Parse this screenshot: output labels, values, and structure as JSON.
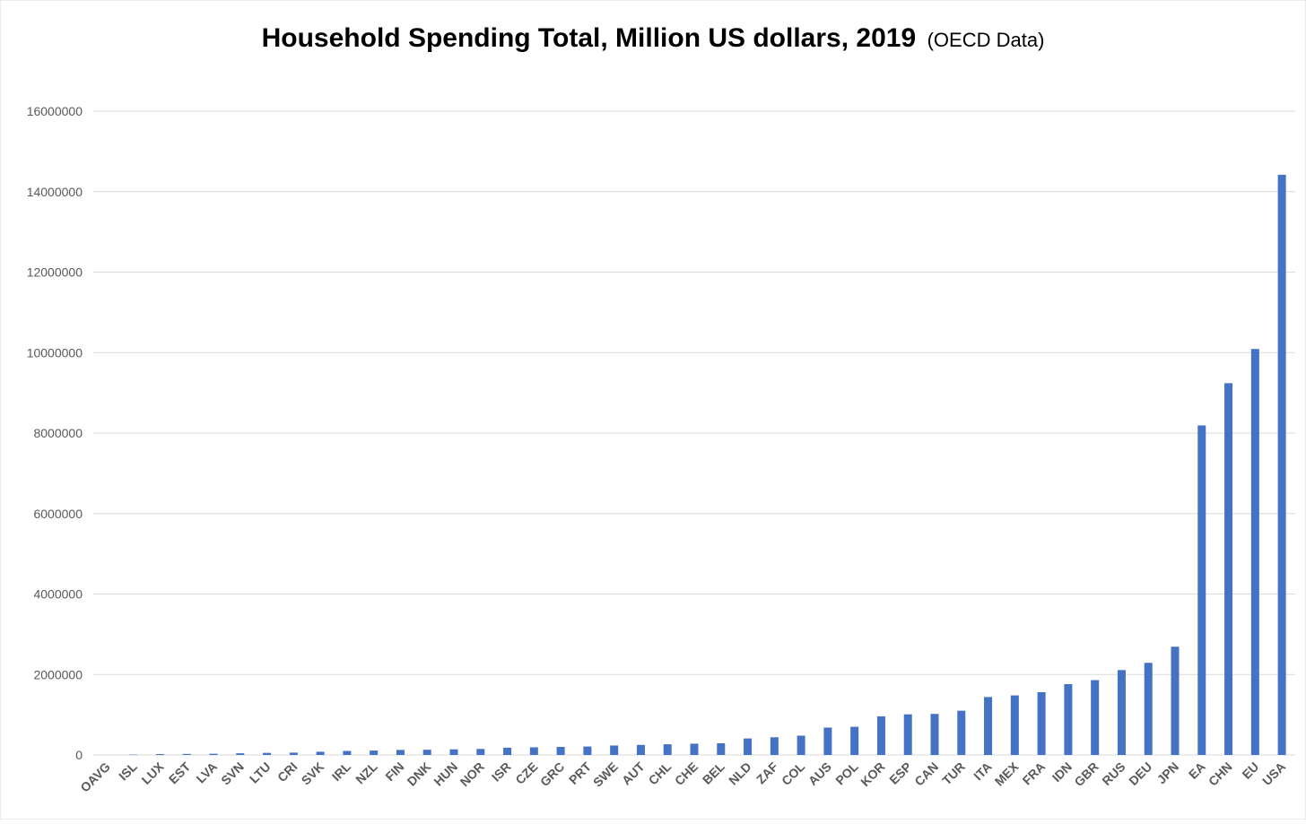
{
  "chart_data": {
    "type": "bar",
    "title": "Household Spending Total, Million US dollars, 2019",
    "subtitle": "(OECD Data)",
    "xlabel": "",
    "ylabel": "",
    "ylim": [
      0,
      16000000
    ],
    "yticks": [
      "0",
      "2000000",
      "4000000",
      "6000000",
      "8000000",
      "10000000",
      "12000000",
      "14000000",
      "16000000"
    ],
    "grid": true,
    "bar_color": "#4472C4",
    "categories": [
      "OAVG",
      "ISL",
      "LUX",
      "EST",
      "LVA",
      "SVN",
      "LTU",
      "CRI",
      "SVK",
      "IRL",
      "NZL",
      "FIN",
      "DNK",
      "HUN",
      "NOR",
      "ISR",
      "CZE",
      "GRC",
      "PRT",
      "SWE",
      "AUT",
      "CHL",
      "CHE",
      "BEL",
      "NLD",
      "ZAF",
      "COL",
      "AUS",
      "POL",
      "KOR",
      "ESP",
      "CAN",
      "TUR",
      "ITA",
      "MEX",
      "FRA",
      "IDN",
      "GBR",
      "RUS",
      "DEU",
      "JPN",
      "EA",
      "CHN",
      "EU",
      "USA"
    ],
    "values": [
      0,
      10000,
      22000,
      25000,
      30000,
      42000,
      52000,
      58000,
      80000,
      100000,
      110000,
      125000,
      130000,
      140000,
      150000,
      180000,
      190000,
      200000,
      210000,
      235000,
      250000,
      265000,
      280000,
      290000,
      410000,
      440000,
      480000,
      680000,
      700000,
      960000,
      1010000,
      1020000,
      1100000,
      1440000,
      1480000,
      1560000,
      1760000,
      1860000,
      2110000,
      2290000,
      2690000,
      8190000,
      9240000,
      10090000,
      14420000
    ]
  }
}
